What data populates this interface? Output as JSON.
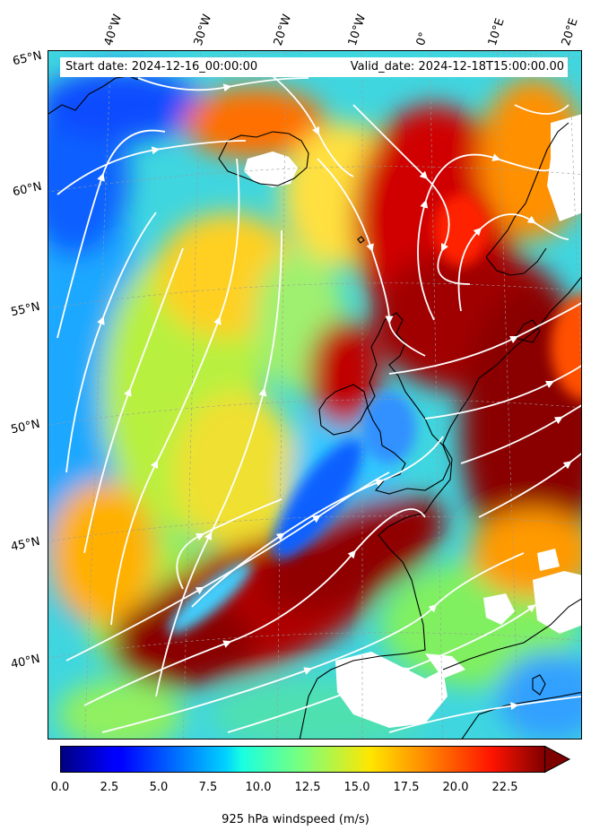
{
  "header": {
    "start_date": "Start date: 2024-12-16_00:00:00",
    "valid_date": "Valid_date: 2024-12-18T15:00:00.00"
  },
  "map": {
    "longitude_labels": [
      "40°W",
      "30°W",
      "20°W",
      "10°W",
      "0°",
      "10°E",
      "20°E"
    ],
    "latitude_labels": [
      "65°N",
      "60°N",
      "55°N",
      "50°N",
      "45°N",
      "40°N"
    ],
    "field": "925 hPa windspeed",
    "overlay": "white streamlines",
    "coastline_color": "#000000",
    "missing_data_color": "#ffffff"
  },
  "colorbar": {
    "label": "925 hPa windspeed (m/s)",
    "ticks": [
      "0.0",
      "2.5",
      "5.0",
      "7.5",
      "10.0",
      "12.5",
      "15.0",
      "17.5",
      "20.0",
      "22.5"
    ],
    "min": 0,
    "max": 25,
    "colormap": "jet",
    "extend": "max"
  }
}
